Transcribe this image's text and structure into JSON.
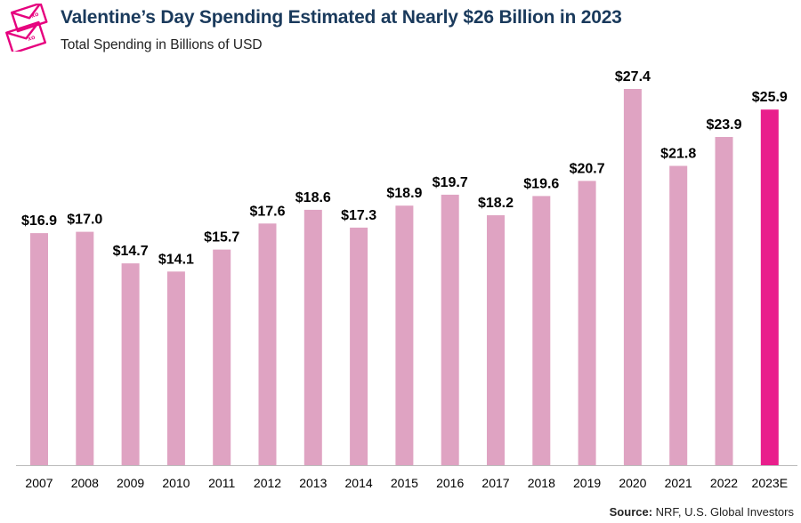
{
  "header": {
    "title": "Valentine’s Day Spending Estimated at Nearly $26 Billion in 2023",
    "subtitle": "Total Spending in Billions of USD"
  },
  "footer": {
    "source_label": "Source:",
    "source_text": " NRF, U.S. Global Investors"
  },
  "colors": {
    "bar": "#dfa3c2",
    "highlight": "#e91e8c",
    "logo": "#e6007e",
    "axis": "#bbbbbb"
  },
  "chart_data": {
    "type": "bar",
    "categories": [
      "2007",
      "2008",
      "2009",
      "2010",
      "2011",
      "2012",
      "2013",
      "2014",
      "2015",
      "2016",
      "2017",
      "2018",
      "2019",
      "2020",
      "2021",
      "2022",
      "2023E"
    ],
    "values": [
      16.9,
      17.0,
      14.7,
      14.1,
      15.7,
      17.6,
      18.6,
      17.3,
      18.9,
      19.7,
      18.2,
      19.6,
      20.7,
      27.4,
      21.8,
      23.9,
      25.9
    ],
    "data_labels": [
      "$16.9",
      "$17.0",
      "$14.7",
      "$14.1",
      "$15.7",
      "$17.6",
      "$18.6",
      "$17.3",
      "$18.9",
      "$19.7",
      "$18.2",
      "$19.6",
      "$20.7",
      "$27.4",
      "$21.8",
      "$23.9",
      "$25.9"
    ],
    "highlight_category": "2023E",
    "ylim": [
      0,
      27.4
    ],
    "grid": false,
    "title": "Valentine’s Day Spending Estimated at Nearly $26 Billion in 2023",
    "subtitle": "Total Spending in Billions of USD",
    "xlabel": "",
    "ylabel": ""
  }
}
